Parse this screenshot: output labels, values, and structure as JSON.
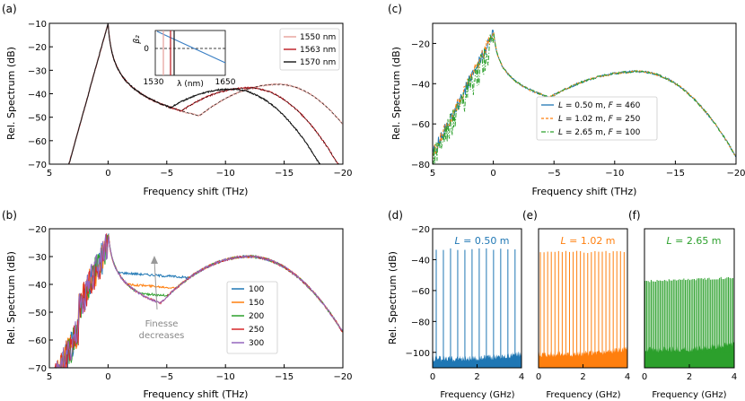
{
  "chart_data": [
    {
      "panel": "(a)",
      "type": "line",
      "xlabel": "Frequency shift (THz)",
      "ylabel": "Rel. Spectrum (dB)",
      "xlim": [
        5,
        -20
      ],
      "ylim": [
        -70,
        -10
      ],
      "xticks": [
        5,
        0,
        -5,
        -10,
        -15,
        -20
      ],
      "yticks": [
        -10,
        -20,
        -30,
        -40,
        -50,
        -60,
        -70
      ],
      "xtick_labels": [
        "5",
        "0",
        "−5",
        "−10",
        "−15",
        "−20"
      ],
      "ytick_labels": [
        "−10",
        "−20",
        "−30",
        "−40",
        "−50",
        "−60",
        "−70"
      ],
      "legend_position": "top-right",
      "series": [
        {
          "name": "1550 nm",
          "color": "#e8a6a0",
          "peak_shift": -14.5,
          "peak_db": -36,
          "dip_shift": 3.5
        },
        {
          "name": "1563 nm",
          "color": "#c0272d",
          "peak_shift": -12.0,
          "peak_db": -37.5,
          "dip_shift": 4.0
        },
        {
          "name": "1570 nm",
          "color": "#222222",
          "peak_shift": -10.5,
          "peak_db": -38,
          "dip_shift": 4.5
        }
      ],
      "inset": {
        "type": "line",
        "ylabel": "β₂",
        "xlabel": "λ (nm)",
        "xlim": [
          1530,
          1650
        ],
        "tick_labels": [
          "1530",
          "1650"
        ],
        "ytick_labels": [
          "0"
        ],
        "zero_wavelength": 1563,
        "markers_nm": [
          1550,
          1563,
          1570
        ]
      }
    },
    {
      "panel": "(b)",
      "type": "line",
      "xlabel": "Frequency shift (THz)",
      "ylabel": "Rel. Spectrum (dB)",
      "xlim": [
        5,
        -20
      ],
      "ylim": [
        -70,
        -20
      ],
      "xticks": [
        5,
        0,
        -5,
        -10,
        -15,
        -20
      ],
      "yticks": [
        -20,
        -30,
        -40,
        -50,
        -60,
        -70
      ],
      "xtick_labels": [
        "5",
        "0",
        "−5",
        "−10",
        "−15",
        "−20"
      ],
      "ytick_labels": [
        "−20",
        "−30",
        "−40",
        "−50",
        "−60",
        "−70"
      ],
      "legend_position": "center-right",
      "annotation": [
        "Finesse",
        "decreases"
      ],
      "series": [
        {
          "name": "100",
          "color": "#1f77b4",
          "floor_db": -37
        },
        {
          "name": "150",
          "color": "#ff7f0e",
          "floor_db": -41
        },
        {
          "name": "200",
          "color": "#2ca02c",
          "floor_db": -44
        },
        {
          "name": "250",
          "color": "#d62728",
          "floor_db": -47
        },
        {
          "name": "300",
          "color": "#9467bd",
          "floor_db": -50
        }
      ],
      "common_peak": {
        "shift": -12,
        "db": -30
      }
    },
    {
      "panel": "(c)",
      "type": "line",
      "xlabel": "Frequency shift (THz)",
      "ylabel": "Rel. Spectrum (dB)",
      "xlim": [
        5,
        -20
      ],
      "ylim": [
        -80,
        -10
      ],
      "xticks": [
        5,
        0,
        -5,
        -10,
        -15,
        -20
      ],
      "yticks": [
        -20,
        -40,
        -60,
        -80
      ],
      "xtick_labels": [
        "5",
        "0",
        "−5",
        "−10",
        "−15",
        "−20"
      ],
      "ytick_labels": [
        "−20",
        "−40",
        "−60",
        "−80"
      ],
      "legend_position": "lower-center",
      "series": [
        {
          "name": "L = 0.50 m, F = 460",
          "parts": [
            "L",
            " = 0.50 m, ",
            "F",
            " = 460"
          ],
          "color": "#1f77b4",
          "dash": "solid"
        },
        {
          "name": "L = 1.02 m, F = 250",
          "parts": [
            "L",
            " = 1.02 m, ",
            "F",
            " = 250"
          ],
          "color": "#ff7f0e",
          "dash": "dashed"
        },
        {
          "name": "L = 2.65 m, F = 100",
          "parts": [
            "L",
            " = 2.65 m, ",
            "F",
            " = 100"
          ],
          "color": "#2ca02c",
          "dash": "dashdot"
        }
      ],
      "common_peak": {
        "shift": -12,
        "db": -34
      }
    },
    {
      "panel": "(d)",
      "type": "line",
      "title": "L = 0.50 m",
      "title_parts": [
        "L",
        " = 0.50 m"
      ],
      "xlabel": "Frequency (GHz)",
      "ylabel": "Rel. Spectrum (dB)",
      "xlim": [
        0,
        4
      ],
      "ylim": [
        -110,
        -20
      ],
      "xticks": [
        0,
        2,
        4
      ],
      "xtick_labels": [
        "0",
        "2",
        "4"
      ],
      "yticks": [
        -20,
        -40,
        -60,
        -80,
        -100
      ],
      "ytick_labels": [
        "−20",
        "−40",
        "−60",
        "−80",
        "−100"
      ],
      "color": "#1f77b4",
      "line_count": 12,
      "line_top_db": -33,
      "noise_floor_db": -106
    },
    {
      "panel": "(e)",
      "type": "line",
      "title": "L = 1.02 m",
      "title_parts": [
        "L",
        " = 1.02 m"
      ],
      "xlabel": "Frequency (GHz)",
      "xlim": [
        0,
        4
      ],
      "xticks": [
        0,
        2,
        4
      ],
      "xtick_labels": [
        "0",
        "2",
        "4"
      ],
      "color": "#ff7f0e",
      "line_count": 24,
      "line_top_db": -35,
      "noise_floor_db": -103
    },
    {
      "panel": "(f)",
      "type": "line",
      "title": "L = 2.65 m",
      "title_parts": [
        "L",
        " = 2.65 m"
      ],
      "xlabel": "Frequency (GHz)",
      "xlim": [
        0,
        4
      ],
      "xticks": [
        0,
        2,
        4
      ],
      "xtick_labels": [
        "0",
        "2",
        "4"
      ],
      "color": "#2ca02c",
      "line_count": 60,
      "line_top_db": -54,
      "noise_floor_db": -100
    }
  ]
}
